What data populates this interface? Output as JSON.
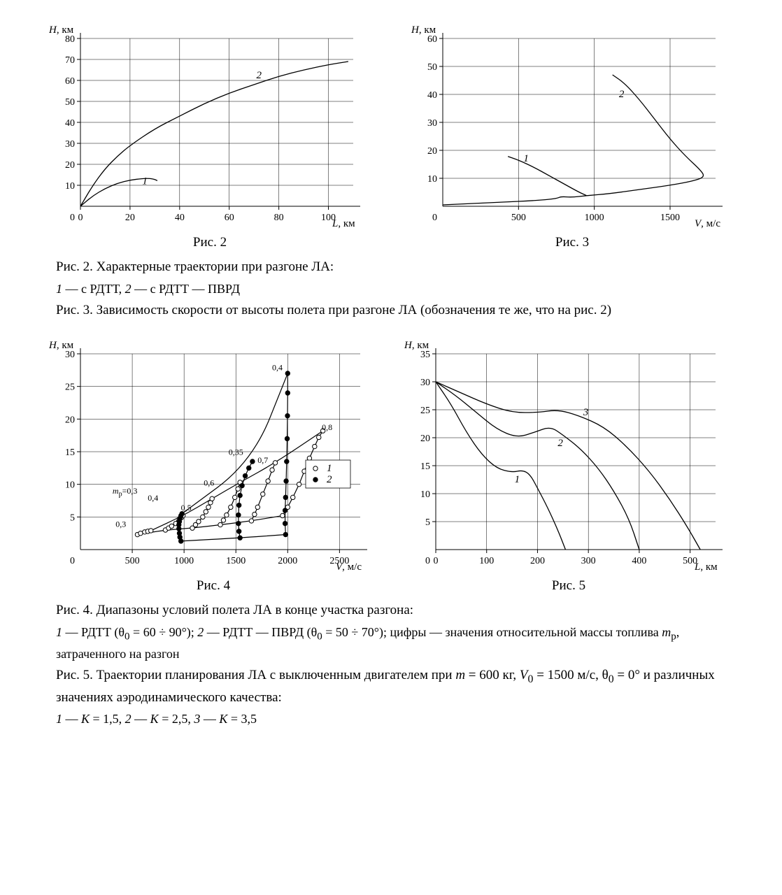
{
  "fig2": {
    "type": "line",
    "ylabel_html": "<em>H</em>, км",
    "xlabel_html": "<em>L</em>, км",
    "xlim": [
      0,
      110
    ],
    "ylim": [
      0,
      80
    ],
    "xticks": [
      0,
      20,
      40,
      60,
      80,
      100
    ],
    "yticks": [
      10,
      20,
      30,
      40,
      50,
      60,
      70,
      80
    ],
    "series": [
      {
        "name": "1",
        "pts": [
          [
            0,
            0
          ],
          [
            5,
            5
          ],
          [
            10,
            8.5
          ],
          [
            15,
            11
          ],
          [
            20,
            12.5
          ],
          [
            25,
            13.2
          ],
          [
            28,
            13.3
          ],
          [
            30,
            12.8
          ],
          [
            31,
            12.2
          ]
        ],
        "label_xy": [
          26,
          10.5
        ]
      },
      {
        "name": "2",
        "pts": [
          [
            0,
            0
          ],
          [
            5,
            10
          ],
          [
            10,
            18
          ],
          [
            15,
            24
          ],
          [
            20,
            29
          ],
          [
            30,
            37
          ],
          [
            40,
            43
          ],
          [
            50,
            49
          ],
          [
            60,
            54
          ],
          [
            70,
            58
          ],
          [
            80,
            62
          ],
          [
            90,
            65
          ],
          [
            100,
            67.5
          ],
          [
            108,
            69
          ]
        ],
        "label_xy": [
          72,
          61
        ]
      }
    ],
    "caption": "Рис. 2"
  },
  "fig3": {
    "type": "line",
    "ylabel_html": "<em>H</em>, км",
    "xlabel_html": "<em>V</em>, м/с",
    "xlim": [
      0,
      1800
    ],
    "ylim": [
      0,
      60
    ],
    "xticks": [
      500,
      1000,
      1500
    ],
    "yticks": [
      10,
      20,
      30,
      40,
      50,
      60
    ],
    "shared": {
      "pts": [
        [
          0,
          0.5
        ],
        [
          200,
          1
        ],
        [
          400,
          1.5
        ],
        [
          600,
          2
        ],
        [
          750,
          2.7
        ],
        [
          780,
          3.5
        ],
        [
          850,
          3.2
        ],
        [
          950,
          3.8
        ]
      ]
    },
    "series": [
      {
        "name": "1",
        "pts": [
          [
            950,
            3.8
          ],
          [
            900,
            5
          ],
          [
            800,
            8
          ],
          [
            700,
            11
          ],
          [
            600,
            14
          ],
          [
            500,
            16.5
          ],
          [
            430,
            17.8
          ]
        ],
        "label_xy": [
          550,
          16
        ]
      },
      {
        "name": "2",
        "pts": [
          [
            950,
            3.8
          ],
          [
            1100,
            4.5
          ],
          [
            1300,
            6
          ],
          [
            1500,
            7.5
          ],
          [
            1650,
            9
          ],
          [
            1730,
            10.5
          ],
          [
            1700,
            13
          ],
          [
            1600,
            18
          ],
          [
            1500,
            24
          ],
          [
            1400,
            31
          ],
          [
            1300,
            38
          ],
          [
            1200,
            44
          ],
          [
            1120,
            47
          ]
        ],
        "label_xy": [
          1180,
          39
        ]
      }
    ],
    "caption": "Рис. 3"
  },
  "fig4": {
    "type": "scatter-line",
    "ylabel_html": "<em>H</em>, км",
    "xlabel_html": "<em>V</em>, м/с",
    "xlim": [
      0,
      2700
    ],
    "ylim": [
      0,
      30
    ],
    "xticks": [
      500,
      1000,
      1500,
      2000,
      2500
    ],
    "yticks": [
      5,
      10,
      15,
      20,
      25,
      30
    ],
    "legend": [
      {
        "sym": "open",
        "label": "1"
      },
      {
        "sym": "solid",
        "label": "2"
      }
    ],
    "open_series": [
      {
        "label": "0,3",
        "lxy": [
          390,
          3.5
        ],
        "pts": [
          [
            550,
            2.3
          ],
          [
            580,
            2.5
          ],
          [
            620,
            2.7
          ],
          [
            650,
            2.8
          ],
          [
            680,
            2.9
          ]
        ]
      },
      {
        "label": "0,4",
        "lxy": [
          700,
          7.5
        ],
        "pts": [
          [
            820,
            3.0
          ],
          [
            850,
            3.3
          ],
          [
            880,
            3.6
          ],
          [
            920,
            4.0
          ],
          [
            950,
            4.4
          ],
          [
            975,
            4.9
          ],
          [
            990,
            5.2
          ]
        ]
      },
      {
        "label": "0,5",
        "lxy": [
          1020,
          6.0
        ],
        "pts": [
          [
            1080,
            3.3
          ],
          [
            1110,
            3.8
          ],
          [
            1140,
            4.3
          ],
          [
            1180,
            5.0
          ],
          [
            1210,
            5.8
          ],
          [
            1235,
            6.5
          ],
          [
            1255,
            7.2
          ],
          [
            1270,
            7.8
          ]
        ]
      },
      {
        "label": "0,6",
        "lxy": [
          1240,
          9.8
        ],
        "pts": [
          [
            1350,
            3.8
          ],
          [
            1380,
            4.5
          ],
          [
            1410,
            5.3
          ],
          [
            1450,
            6.5
          ],
          [
            1490,
            8.0
          ],
          [
            1520,
            9.3
          ],
          [
            1540,
            10.3
          ]
        ]
      },
      {
        "label": "0,7",
        "lxy": [
          1760,
          13.3
        ],
        "pts": [
          [
            1650,
            4.4
          ],
          [
            1680,
            5.4
          ],
          [
            1710,
            6.5
          ],
          [
            1760,
            8.5
          ],
          [
            1810,
            10.5
          ],
          [
            1850,
            12.2
          ],
          [
            1880,
            13.3
          ]
        ]
      },
      {
        "label": "0,8",
        "lxy": [
          2380,
          18.3
        ],
        "pts": [
          [
            1950,
            5.2
          ],
          [
            2000,
            6.5
          ],
          [
            2050,
            8.0
          ],
          [
            2110,
            10.0
          ],
          [
            2160,
            12.0
          ],
          [
            2210,
            14.0
          ],
          [
            2260,
            15.8
          ],
          [
            2300,
            17.2
          ],
          [
            2340,
            18.2
          ]
        ]
      }
    ],
    "solid_series": [
      {
        "label": "mp=0,3",
        "lxy": [
          580,
          8.5
        ],
        "is_mp": true,
        "pts": [
          [
            970,
            1.3
          ],
          [
            960,
            1.9
          ],
          [
            955,
            2.5
          ],
          [
            950,
            3.2
          ],
          [
            950,
            3.8
          ],
          [
            955,
            4.3
          ],
          [
            960,
            4.8
          ],
          [
            970,
            5.2
          ],
          [
            980,
            5.5
          ]
        ]
      },
      {
        "label": "0,35",
        "lxy": [
          1500,
          14.5
        ],
        "pts": [
          [
            1540,
            1.8
          ],
          [
            1530,
            2.8
          ],
          [
            1525,
            4.0
          ],
          [
            1525,
            5.3
          ],
          [
            1530,
            6.8
          ],
          [
            1540,
            8.3
          ],
          [
            1560,
            9.8
          ],
          [
            1590,
            11.3
          ],
          [
            1625,
            12.5
          ],
          [
            1660,
            13.5
          ]
        ]
      },
      {
        "label": "0,4",
        "lxy": [
          1900,
          27.5
        ],
        "pts": [
          [
            1980,
            2.3
          ],
          [
            1975,
            4.0
          ],
          [
            1975,
            6.0
          ],
          [
            1980,
            8.0
          ],
          [
            1985,
            10.5
          ],
          [
            1990,
            13.5
          ],
          [
            1995,
            17.0
          ],
          [
            1998,
            20.5
          ],
          [
            2000,
            24.0
          ],
          [
            2000,
            27.0
          ]
        ]
      }
    ],
    "env_open_top": [
      [
        680,
        2.9
      ],
      [
        990,
        5.2
      ],
      [
        1270,
        7.8
      ],
      [
        1540,
        10.3
      ],
      [
        1880,
        13.3
      ],
      [
        2340,
        18.2
      ]
    ],
    "env_open_bot": [
      [
        550,
        2.3
      ],
      [
        820,
        3.0
      ],
      [
        1080,
        3.3
      ],
      [
        1350,
        3.8
      ],
      [
        1650,
        4.4
      ],
      [
        1950,
        5.2
      ]
    ],
    "env_solid_top": [
      [
        980,
        5.5
      ],
      [
        1660,
        13.5
      ],
      [
        2000,
        27.0
      ]
    ],
    "env_solid_bot": [
      [
        970,
        1.3
      ],
      [
        1540,
        1.8
      ],
      [
        1980,
        2.3
      ]
    ],
    "caption": "Рис. 4"
  },
  "fig5": {
    "type": "line",
    "ylabel_html": "<em>H</em>, км",
    "xlabel_html": "<em>L</em>, км",
    "xlim": [
      0,
      550
    ],
    "ylim": [
      0,
      35
    ],
    "xticks": [
      0,
      100,
      200,
      300,
      400,
      500
    ],
    "yticks": [
      5,
      10,
      15,
      20,
      25,
      30,
      35
    ],
    "series": [
      {
        "name": "1",
        "pts": [
          [
            0,
            30
          ],
          [
            30,
            26
          ],
          [
            60,
            21
          ],
          [
            90,
            17
          ],
          [
            120,
            14.5
          ],
          [
            150,
            13.8
          ],
          [
            170,
            14.2
          ],
          [
            185,
            13.5
          ],
          [
            200,
            11
          ],
          [
            220,
            7.5
          ],
          [
            240,
            3.5
          ],
          [
            255,
            0
          ]
        ],
        "label_xy": [
          160,
          12
        ]
      },
      {
        "name": "2",
        "pts": [
          [
            0,
            30
          ],
          [
            40,
            27.5
          ],
          [
            80,
            24.5
          ],
          [
            120,
            21.5
          ],
          [
            160,
            20
          ],
          [
            195,
            21
          ],
          [
            225,
            22
          ],
          [
            250,
            20.5
          ],
          [
            285,
            18
          ],
          [
            320,
            14.5
          ],
          [
            350,
            10.5
          ],
          [
            380,
            5.5
          ],
          [
            400,
            0
          ]
        ],
        "label_xy": [
          245,
          18.5
        ]
      },
      {
        "name": "3",
        "pts": [
          [
            0,
            30
          ],
          [
            50,
            28
          ],
          [
            100,
            26
          ],
          [
            150,
            24.5
          ],
          [
            200,
            24.5
          ],
          [
            240,
            25
          ],
          [
            280,
            24
          ],
          [
            330,
            22
          ],
          [
            375,
            18.5
          ],
          [
            420,
            14
          ],
          [
            460,
            9
          ],
          [
            495,
            4
          ],
          [
            520,
            0
          ]
        ],
        "label_xy": [
          295,
          24
        ]
      }
    ],
    "caption": "Рис. 5"
  },
  "caps": {
    "fig2_title": "Рис. 2.  Характерные траектории при разгоне ЛА:",
    "fig2_sub_html": "<em>1</em> — с РДТТ, <em>2</em> — с РДТТ — ПВРД",
    "fig3_title": "Рис. 3.  Зависимость скорости от высоты полета при разгоне ЛА (обозначения те же, что на рис. 2)",
    "fig4_title": "Рис. 4.  Диапазоны условий полета ЛА в конце участка разгона:",
    "fig4_sub_html": "<em>1</em> — РДТТ (θ<sub>0</sub> = 60 ÷ 90°); <em>2</em> — РДТТ — ПВРД (θ<sub>0</sub> = 50 ÷ 70°); цифры — значения относительной массы топлива <em>m</em><sub>р</sub>, затраченного на разгон",
    "fig5_title_html": "Рис. 5.  Траектории планирования ЛА с выключенным двигателем при <em>m</em> = 600 кг, <em>V</em><sub>0</sub> = 1500 м/с, θ<sub>0</sub> = 0° и различных значениях аэродинамического качества:",
    "fig5_sub_html": "<em>1</em> — <em>K</em> = 1,5, <em>2</em> — <em>K</em> = 2,5, <em>3</em> — <em>K</em> = 3,5"
  }
}
